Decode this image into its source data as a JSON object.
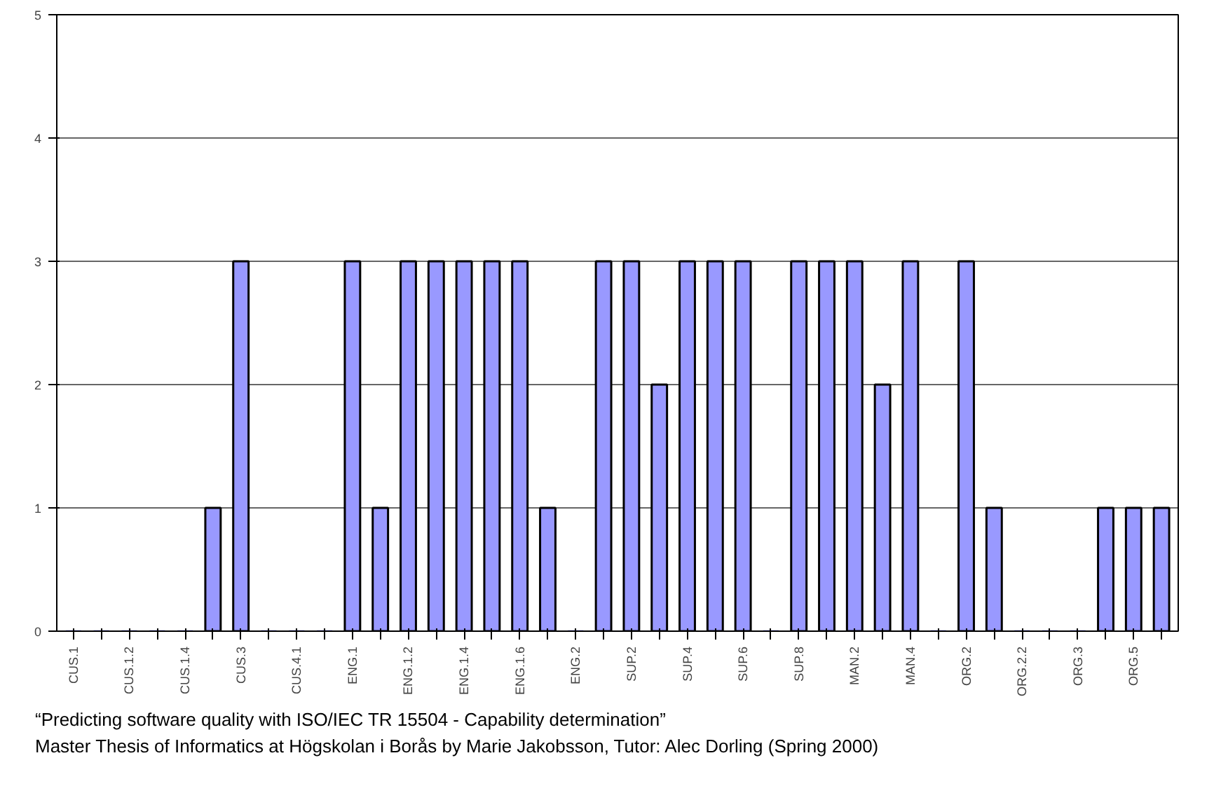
{
  "chart_data": {
    "type": "bar",
    "categories": [
      "CUS.1",
      null,
      "CUS.1.2",
      null,
      "CUS.1.4",
      null,
      "CUS.3",
      null,
      "CUS.4.1",
      null,
      "ENG.1",
      null,
      "ENG.1.2",
      null,
      "ENG.1.4",
      null,
      "ENG.1.6",
      null,
      "ENG.2",
      null,
      "SUP.2",
      null,
      "SUP.4",
      null,
      "SUP.6",
      null,
      "SUP.8",
      null,
      "MAN.2",
      null,
      "MAN.4",
      null,
      "ORG.2",
      null,
      "ORG.2.2",
      null,
      "ORG.3",
      null,
      "ORG.5",
      null
    ],
    "values": [
      0,
      0,
      0,
      0,
      0,
      1,
      3,
      0,
      0,
      0,
      3,
      1,
      3,
      3,
      3,
      3,
      3,
      1,
      0,
      3,
      3,
      2,
      3,
      3,
      3,
      0,
      3,
      3,
      3,
      2,
      3,
      0,
      3,
      1,
      0,
      0,
      0,
      1,
      1,
      1
    ],
    "color": "#9999ff",
    "ylim": [
      0,
      5
    ],
    "yticks": [
      0,
      1,
      2,
      3,
      4,
      5
    ],
    "grid": "y",
    "annotations": [
      "“Predicting software quality with ISO/IEC TR 15504 - Capability determination”",
      "Master Thesis of Informatics at Högskolan i Borås by Marie Jakobsson, Tutor: Alec Dorling (Spring 2000)"
    ]
  }
}
